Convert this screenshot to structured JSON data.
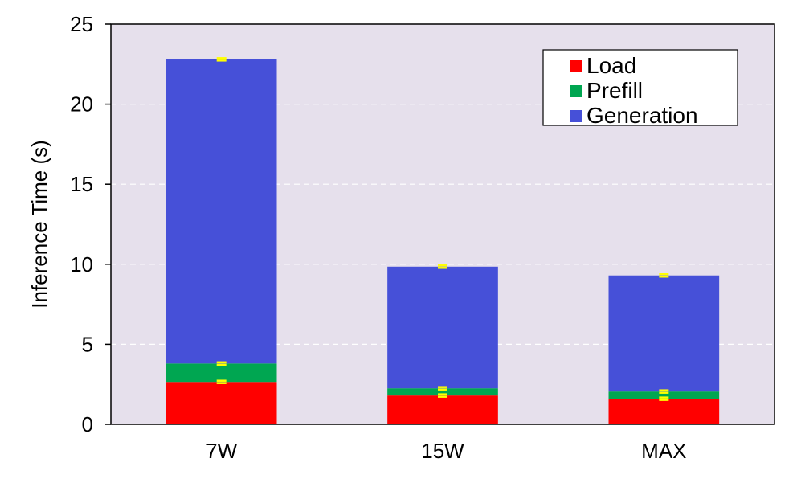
{
  "chart_data": {
    "type": "bar",
    "stacked": true,
    "categories": [
      "7W",
      "15W",
      "MAX"
    ],
    "series": [
      {
        "name": "Load",
        "color": "#ff0000",
        "values": [
          2.65,
          1.8,
          1.6
        ]
      },
      {
        "name": "Prefill",
        "color": "#00a651",
        "values": [
          1.15,
          0.45,
          0.45
        ]
      },
      {
        "name": "Generation",
        "color": "#4650d8",
        "values": [
          19.0,
          7.6,
          7.25
        ]
      }
    ],
    "error_bar_color": "#ffff00",
    "ylabel": "Inference Time (s)",
    "xlabel": "",
    "ylim": [
      0,
      25
    ],
    "yticks": [
      0,
      5,
      10,
      15,
      20,
      25
    ],
    "grid": true,
    "legend_position": "top-right",
    "plot_background": "#e6e0ec"
  }
}
